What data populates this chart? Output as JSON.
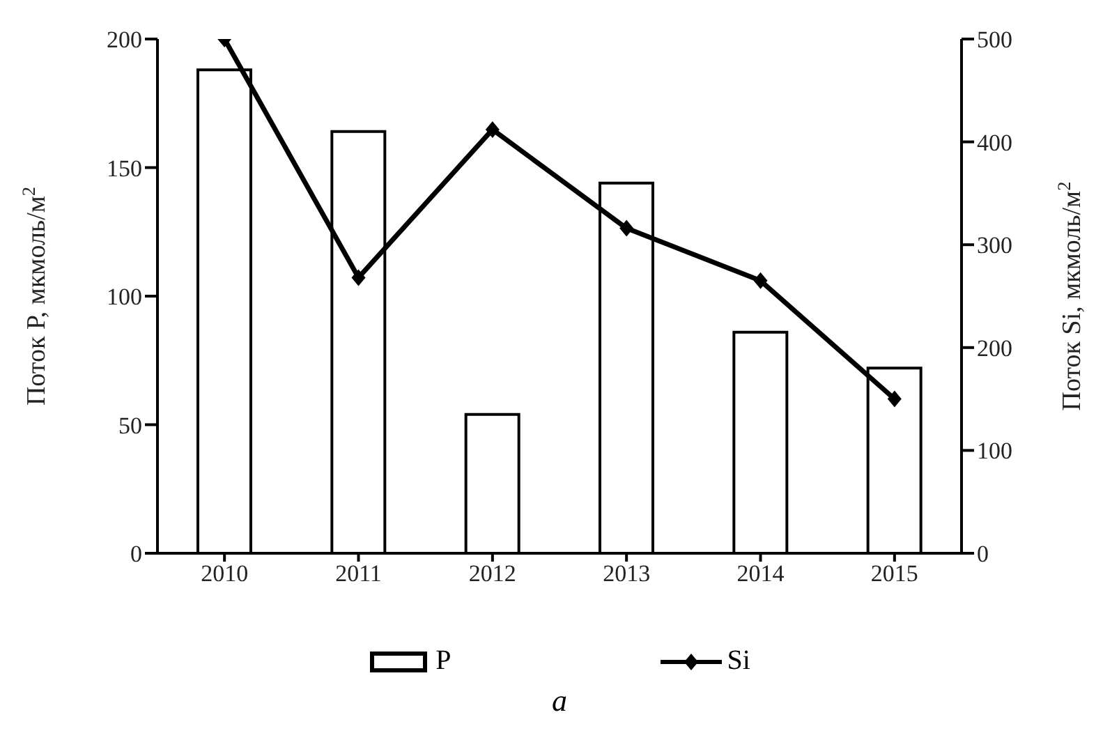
{
  "chart_data": {
    "type": "bar",
    "categories": [
      "2010",
      "2011",
      "2012",
      "2013",
      "2014",
      "2015"
    ],
    "series": [
      {
        "name": "P",
        "color": "#ffffff",
        "values": [
          188,
          164,
          54,
          144,
          86,
          72
        ]
      },
      {
        "name": "Si",
        "type": "line",
        "axis": "y2",
        "color": "#000000",
        "values": [
          500,
          268,
          412,
          316,
          265,
          150
        ]
      }
    ],
    "ylabel": "Поток P, мкмоль/м$^{2}$",
    "y2label": "Поток Si, мкмоль/м$^{2}$",
    "ylim": [
      0,
      200
    ],
    "yticks": [
      0,
      50,
      100,
      150,
      200
    ],
    "y2lim": [
      0,
      500
    ],
    "y2ticks": [
      0,
      100,
      200,
      300,
      400,
      500
    ],
    "marker": "diamond",
    "line_style": "solid",
    "grid": false,
    "legend": "bottom",
    "annotations": [
      "а"
    ]
  }
}
